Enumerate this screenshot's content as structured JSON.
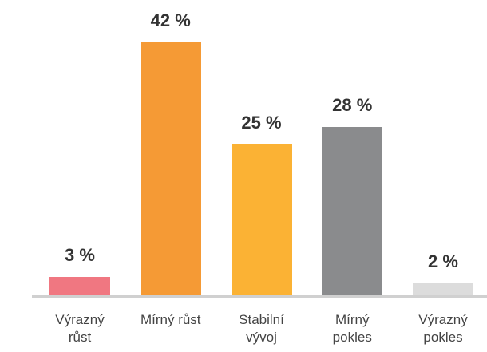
{
  "chart_data": {
    "type": "bar",
    "categories": [
      "Výrazný růst",
      "Mírný růst",
      "Stabilní vývoj",
      "Mírný pokles",
      "Výrazný pokles"
    ],
    "values": [
      3,
      42,
      25,
      28,
      2
    ],
    "value_labels": [
      "3 %",
      "42 %",
      "25 %",
      "28 %",
      "2 %"
    ],
    "colors": [
      "#f07781",
      "#f59a35",
      "#fbb234",
      "#8a8b8d",
      "#dcdcdc"
    ]
  }
}
